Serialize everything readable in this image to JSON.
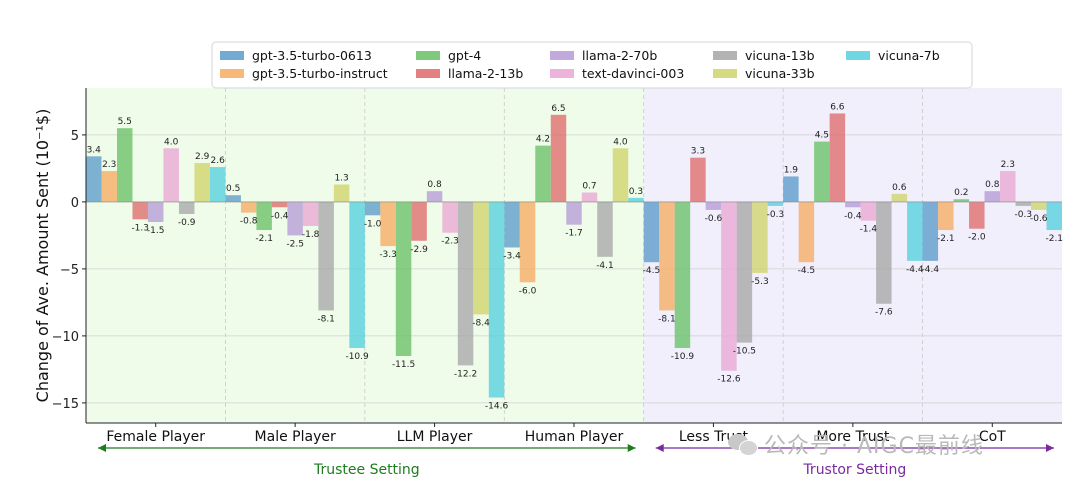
{
  "chart_data": {
    "type": "bar",
    "ylabel": "Change of Ave. Amount Sent (10⁻¹$)",
    "ylim": [
      -16.5,
      8.5
    ],
    "yticks": [
      -15,
      -10,
      -5,
      0,
      5
    ],
    "ytick_labels": [
      "−15",
      "−10",
      "−5",
      "0",
      "5"
    ],
    "categories": [
      "Female Player",
      "Male Player",
      "LLM Player",
      "Human Player",
      "Less Trust",
      "More Trust",
      "CoT"
    ],
    "groups": [
      {
        "label": "Trustee Setting",
        "from": 0,
        "to": 3,
        "color": "#1e7b1e",
        "background": "#effcea"
      },
      {
        "label": "Trustor Setting",
        "from": 4,
        "to": 6,
        "color": "#7a2aa0",
        "background": "#f1effc"
      }
    ],
    "series": [
      {
        "name": "gpt-3.5-turbo-0613",
        "color": "#5b9bc9",
        "values": [
          3.4,
          0.5,
          -1.0,
          -3.4,
          -4.5,
          1.9,
          -4.4
        ]
      },
      {
        "name": "gpt-3.5-turbo-instruct",
        "color": "#f6ac62",
        "values": [
          2.3,
          -0.8,
          -3.3,
          -6.0,
          -8.1,
          -4.5,
          -2.1
        ]
      },
      {
        "name": "gpt-4",
        "color": "#69c066",
        "values": [
          5.5,
          -2.1,
          -11.5,
          4.2,
          -10.9,
          4.5,
          0.2
        ]
      },
      {
        "name": "llama-2-13b",
        "color": "#df6a6a",
        "values": [
          -1.3,
          -0.4,
          -2.9,
          6.5,
          3.3,
          6.6,
          -2.0
        ]
      },
      {
        "name": "llama-2-70b",
        "color": "#b59bd5",
        "values": [
          -1.5,
          -2.5,
          0.8,
          -1.7,
          -0.6,
          -0.4,
          0.8
        ]
      },
      {
        "name": "text-davinci-003",
        "color": "#eba6d4",
        "values": [
          4.0,
          -1.8,
          -2.3,
          0.7,
          -12.6,
          -1.4,
          2.3
        ]
      },
      {
        "name": "vicuna-13b",
        "color": "#a6a6a6",
        "values": [
          -0.9,
          -8.1,
          -12.2,
          -4.1,
          -10.5,
          -7.6,
          -0.3
        ]
      },
      {
        "name": "vicuna-33b",
        "color": "#cfd36a",
        "values": [
          2.9,
          1.3,
          -8.4,
          4.0,
          -5.3,
          0.6,
          -0.6
        ]
      },
      {
        "name": "vicuna-7b",
        "color": "#55d0dc",
        "values": [
          2.6,
          -10.9,
          -14.6,
          0.3,
          -0.3,
          -4.4,
          -2.1
        ]
      }
    ]
  },
  "watermark": {
    "text": "公众号 · AIGC最前线"
  }
}
